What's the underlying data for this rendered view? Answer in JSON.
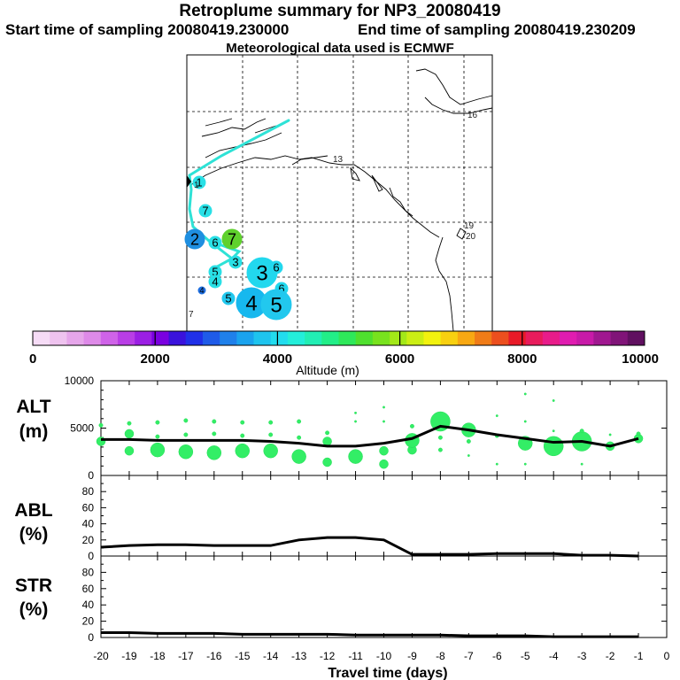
{
  "header": {
    "title": "Retroplume summary for NP3_20080419",
    "start_label": "Start time of sampling 20080419.230000",
    "end_label": "End time of sampling 20080419.230209",
    "met_label": "Meteorological data used is ECMWF"
  },
  "map": {
    "labels": [
      {
        "text": "1",
        "color": "#222222"
      },
      {
        "text": "13",
        "color": "#222222"
      },
      {
        "text": "16",
        "color": "#222222"
      },
      {
        "text": "19",
        "color": "#222222"
      },
      {
        "text": "20",
        "color": "#222222"
      },
      {
        "text": "7",
        "color": "#222222"
      }
    ],
    "clusters": [
      {
        "label": "1",
        "size": "small",
        "color": "#29e0e6"
      },
      {
        "label": "7",
        "size": "small",
        "color": "#29e0e6"
      },
      {
        "label": "2",
        "size": "medium",
        "color": "#1f8fe0"
      },
      {
        "label": "6",
        "size": "small",
        "color": "#29e0e6"
      },
      {
        "label": "7",
        "size": "medium",
        "color": "#5fd12d"
      },
      {
        "label": "3",
        "size": "small",
        "color": "#29e0e6"
      },
      {
        "label": "5",
        "size": "small",
        "color": "#29e0e6"
      },
      {
        "label": "4",
        "size": "small",
        "color": "#29e0e6"
      },
      {
        "label": "3",
        "size": "large",
        "color": "#22d8ee"
      },
      {
        "label": "6",
        "size": "small",
        "color": "#22d8ee"
      },
      {
        "label": "6",
        "size": "small",
        "color": "#22d8ee"
      },
      {
        "label": "4",
        "size": "tiny",
        "color": "#1f6fe0"
      },
      {
        "label": "5",
        "size": "small",
        "color": "#22c8ee"
      },
      {
        "label": "4",
        "size": "large",
        "color": "#17b8ee"
      },
      {
        "label": "5",
        "size": "large",
        "color": "#22c8ee"
      }
    ]
  },
  "colorbar": {
    "ticks": [
      "0",
      "2000",
      "4000",
      "6000",
      "8000",
      "10000"
    ],
    "label": "Altitude (m)",
    "colors": [
      "#f6dcf6",
      "#efc3ef",
      "#e6a6ea",
      "#de8ae8",
      "#cf63e8",
      "#b93ee6",
      "#9b1fe4",
      "#7a00e0",
      "#3a12dc",
      "#2030e8",
      "#1f5be8",
      "#1f80ea",
      "#1aa3ee",
      "#1ec4ee",
      "#22dcee",
      "#23eeda",
      "#22eeb4",
      "#22ee88",
      "#2ee85a",
      "#4fe02e",
      "#78e21e",
      "#a3e818",
      "#cbee14",
      "#f2f20e",
      "#f8d010",
      "#f8a812",
      "#f07c18",
      "#ec4f1e",
      "#e81a28",
      "#e81c5c",
      "#e81c8a",
      "#e01cb0",
      "#c81aa8",
      "#a01890",
      "#801478",
      "#601060"
    ]
  },
  "chart_data": [
    {
      "type": "scatter",
      "panel": "ALT",
      "ylabel_line1": "ALT",
      "ylabel_line2": "(m)",
      "ylim": [
        0,
        10000
      ],
      "yticks": [
        "10000",
        "5000",
        "0"
      ],
      "x": [
        -20,
        -19,
        -18,
        -17,
        -16,
        -15,
        -14,
        -13,
        -12,
        -11,
        -10,
        -9,
        -8,
        -7,
        -6,
        -5,
        -4,
        -3,
        -2,
        -1
      ],
      "mean_altitude": [
        3800,
        3800,
        3700,
        3700,
        3700,
        3700,
        3600,
        3400,
        3100,
        3100,
        3400,
        3900,
        5200,
        4800,
        4300,
        3900,
        3500,
        3600,
        3100,
        3900
      ],
      "cluster_points": [
        {
          "x": -20,
          "y": 3600,
          "size": 2
        },
        {
          "x": -20,
          "y": 5300,
          "size": 1
        },
        {
          "x": -19,
          "y": 2600,
          "size": 2
        },
        {
          "x": -19,
          "y": 4400,
          "size": 2
        },
        {
          "x": -19,
          "y": 5500,
          "size": 1
        },
        {
          "x": -18,
          "y": 2700,
          "size": 3
        },
        {
          "x": -18,
          "y": 4100,
          "size": 1
        },
        {
          "x": -18,
          "y": 5600,
          "size": 1
        },
        {
          "x": -17,
          "y": 2500,
          "size": 3
        },
        {
          "x": -17,
          "y": 4300,
          "size": 1
        },
        {
          "x": -17,
          "y": 5800,
          "size": 1
        },
        {
          "x": -16,
          "y": 2400,
          "size": 3
        },
        {
          "x": -16,
          "y": 4400,
          "size": 1
        },
        {
          "x": -16,
          "y": 5700,
          "size": 1
        },
        {
          "x": -15,
          "y": 2600,
          "size": 3
        },
        {
          "x": -15,
          "y": 4200,
          "size": 1
        },
        {
          "x": -15,
          "y": 5600,
          "size": 1
        },
        {
          "x": -14,
          "y": 2600,
          "size": 3
        },
        {
          "x": -14,
          "y": 4300,
          "size": 1
        },
        {
          "x": -14,
          "y": 5600,
          "size": 1
        },
        {
          "x": -13,
          "y": 2000,
          "size": 3
        },
        {
          "x": -13,
          "y": 4000,
          "size": 1
        },
        {
          "x": -13,
          "y": 5700,
          "size": 1
        },
        {
          "x": -12,
          "y": 1400,
          "size": 2
        },
        {
          "x": -12,
          "y": 3600,
          "size": 2
        },
        {
          "x": -12,
          "y": 4500,
          "size": 1
        },
        {
          "x": -11,
          "y": 2000,
          "size": 3
        },
        {
          "x": -11,
          "y": 5700,
          "size": 0.5
        },
        {
          "x": -11,
          "y": 6600,
          "size": 0.5
        },
        {
          "x": -10,
          "y": 1200,
          "size": 2
        },
        {
          "x": -10,
          "y": 2600,
          "size": 2
        },
        {
          "x": -10,
          "y": 5700,
          "size": 0.5
        },
        {
          "x": -10,
          "y": 7200,
          "size": 0.5
        },
        {
          "x": -9,
          "y": 2700,
          "size": 2
        },
        {
          "x": -9,
          "y": 3700,
          "size": 3
        },
        {
          "x": -9,
          "y": 5200,
          "size": 1
        },
        {
          "x": -8,
          "y": 5700,
          "size": 4
        },
        {
          "x": -8,
          "y": 4000,
          "size": 1
        },
        {
          "x": -8,
          "y": 2700,
          "size": 1
        },
        {
          "x": -7,
          "y": 4800,
          "size": 3
        },
        {
          "x": -7,
          "y": 3600,
          "size": 1
        },
        {
          "x": -7,
          "y": 2100,
          "size": 0.5
        },
        {
          "x": -6,
          "y": 4200,
          "size": 1
        },
        {
          "x": -6,
          "y": 1200,
          "size": 0.5
        },
        {
          "x": -6,
          "y": 6300,
          "size": 0.5
        },
        {
          "x": -5,
          "y": 3400,
          "size": 3
        },
        {
          "x": -5,
          "y": 5700,
          "size": 0.5
        },
        {
          "x": -5,
          "y": 8600,
          "size": 0.5
        },
        {
          "x": -5,
          "y": 1200,
          "size": 0.5
        },
        {
          "x": -4,
          "y": 3100,
          "size": 4
        },
        {
          "x": -4,
          "y": 7900,
          "size": 0.5
        },
        {
          "x": -4,
          "y": 4700,
          "size": 0.5
        },
        {
          "x": -3,
          "y": 3600,
          "size": 4
        },
        {
          "x": -3,
          "y": 4700,
          "size": 1
        },
        {
          "x": -3,
          "y": 1200,
          "size": 0.5
        },
        {
          "x": -2,
          "y": 3100,
          "size": 2
        },
        {
          "x": -2,
          "y": 4300,
          "size": 0.5
        },
        {
          "x": -1,
          "y": 3900,
          "size": 2
        },
        {
          "x": -1,
          "y": 4400,
          "size": 1
        }
      ]
    },
    {
      "type": "line",
      "panel": "ABL",
      "ylabel_line1": "ABL",
      "ylabel_line2": "(%)",
      "ylim": [
        0,
        100
      ],
      "yticks": [
        "80",
        "60",
        "40",
        "20",
        "0"
      ],
      "x": [
        -20,
        -19,
        -18,
        -17,
        -16,
        -15,
        -14,
        -13,
        -12,
        -11,
        -10,
        -9,
        -8,
        -7,
        -6,
        -5,
        -4,
        -3,
        -2,
        -1
      ],
      "values": [
        11,
        13,
        14,
        14,
        13,
        13,
        13,
        20,
        23,
        23,
        20,
        2,
        2,
        2,
        3,
        3,
        3,
        1,
        1,
        0
      ]
    },
    {
      "type": "line",
      "panel": "STR",
      "ylabel_line1": "STR",
      "ylabel_line2": "(%)",
      "ylim": [
        0,
        100
      ],
      "yticks": [
        "80",
        "60",
        "40",
        "20",
        "0"
      ],
      "x": [
        -20,
        -19,
        -18,
        -17,
        -16,
        -15,
        -14,
        -13,
        -12,
        -11,
        -10,
        -9,
        -8,
        -7,
        -6,
        -5,
        -4,
        -3,
        -2,
        -1
      ],
      "values": [
        6,
        6,
        5,
        5,
        5,
        4,
        4,
        4,
        4,
        3,
        3,
        3,
        3,
        2,
        2,
        2,
        1,
        1,
        1,
        1
      ],
      "xlabel": "Travel time (days)",
      "xticks": [
        "-20",
        "-19",
        "-18",
        "-17",
        "-16",
        "-15",
        "-14",
        "-13",
        "-12",
        "-11",
        "-10",
        "-9",
        "-8",
        "-7",
        "-6",
        "-5",
        "-4",
        "-3",
        "-2",
        "-1",
        "0"
      ],
      "xlim": [
        -20,
        0
      ]
    }
  ]
}
